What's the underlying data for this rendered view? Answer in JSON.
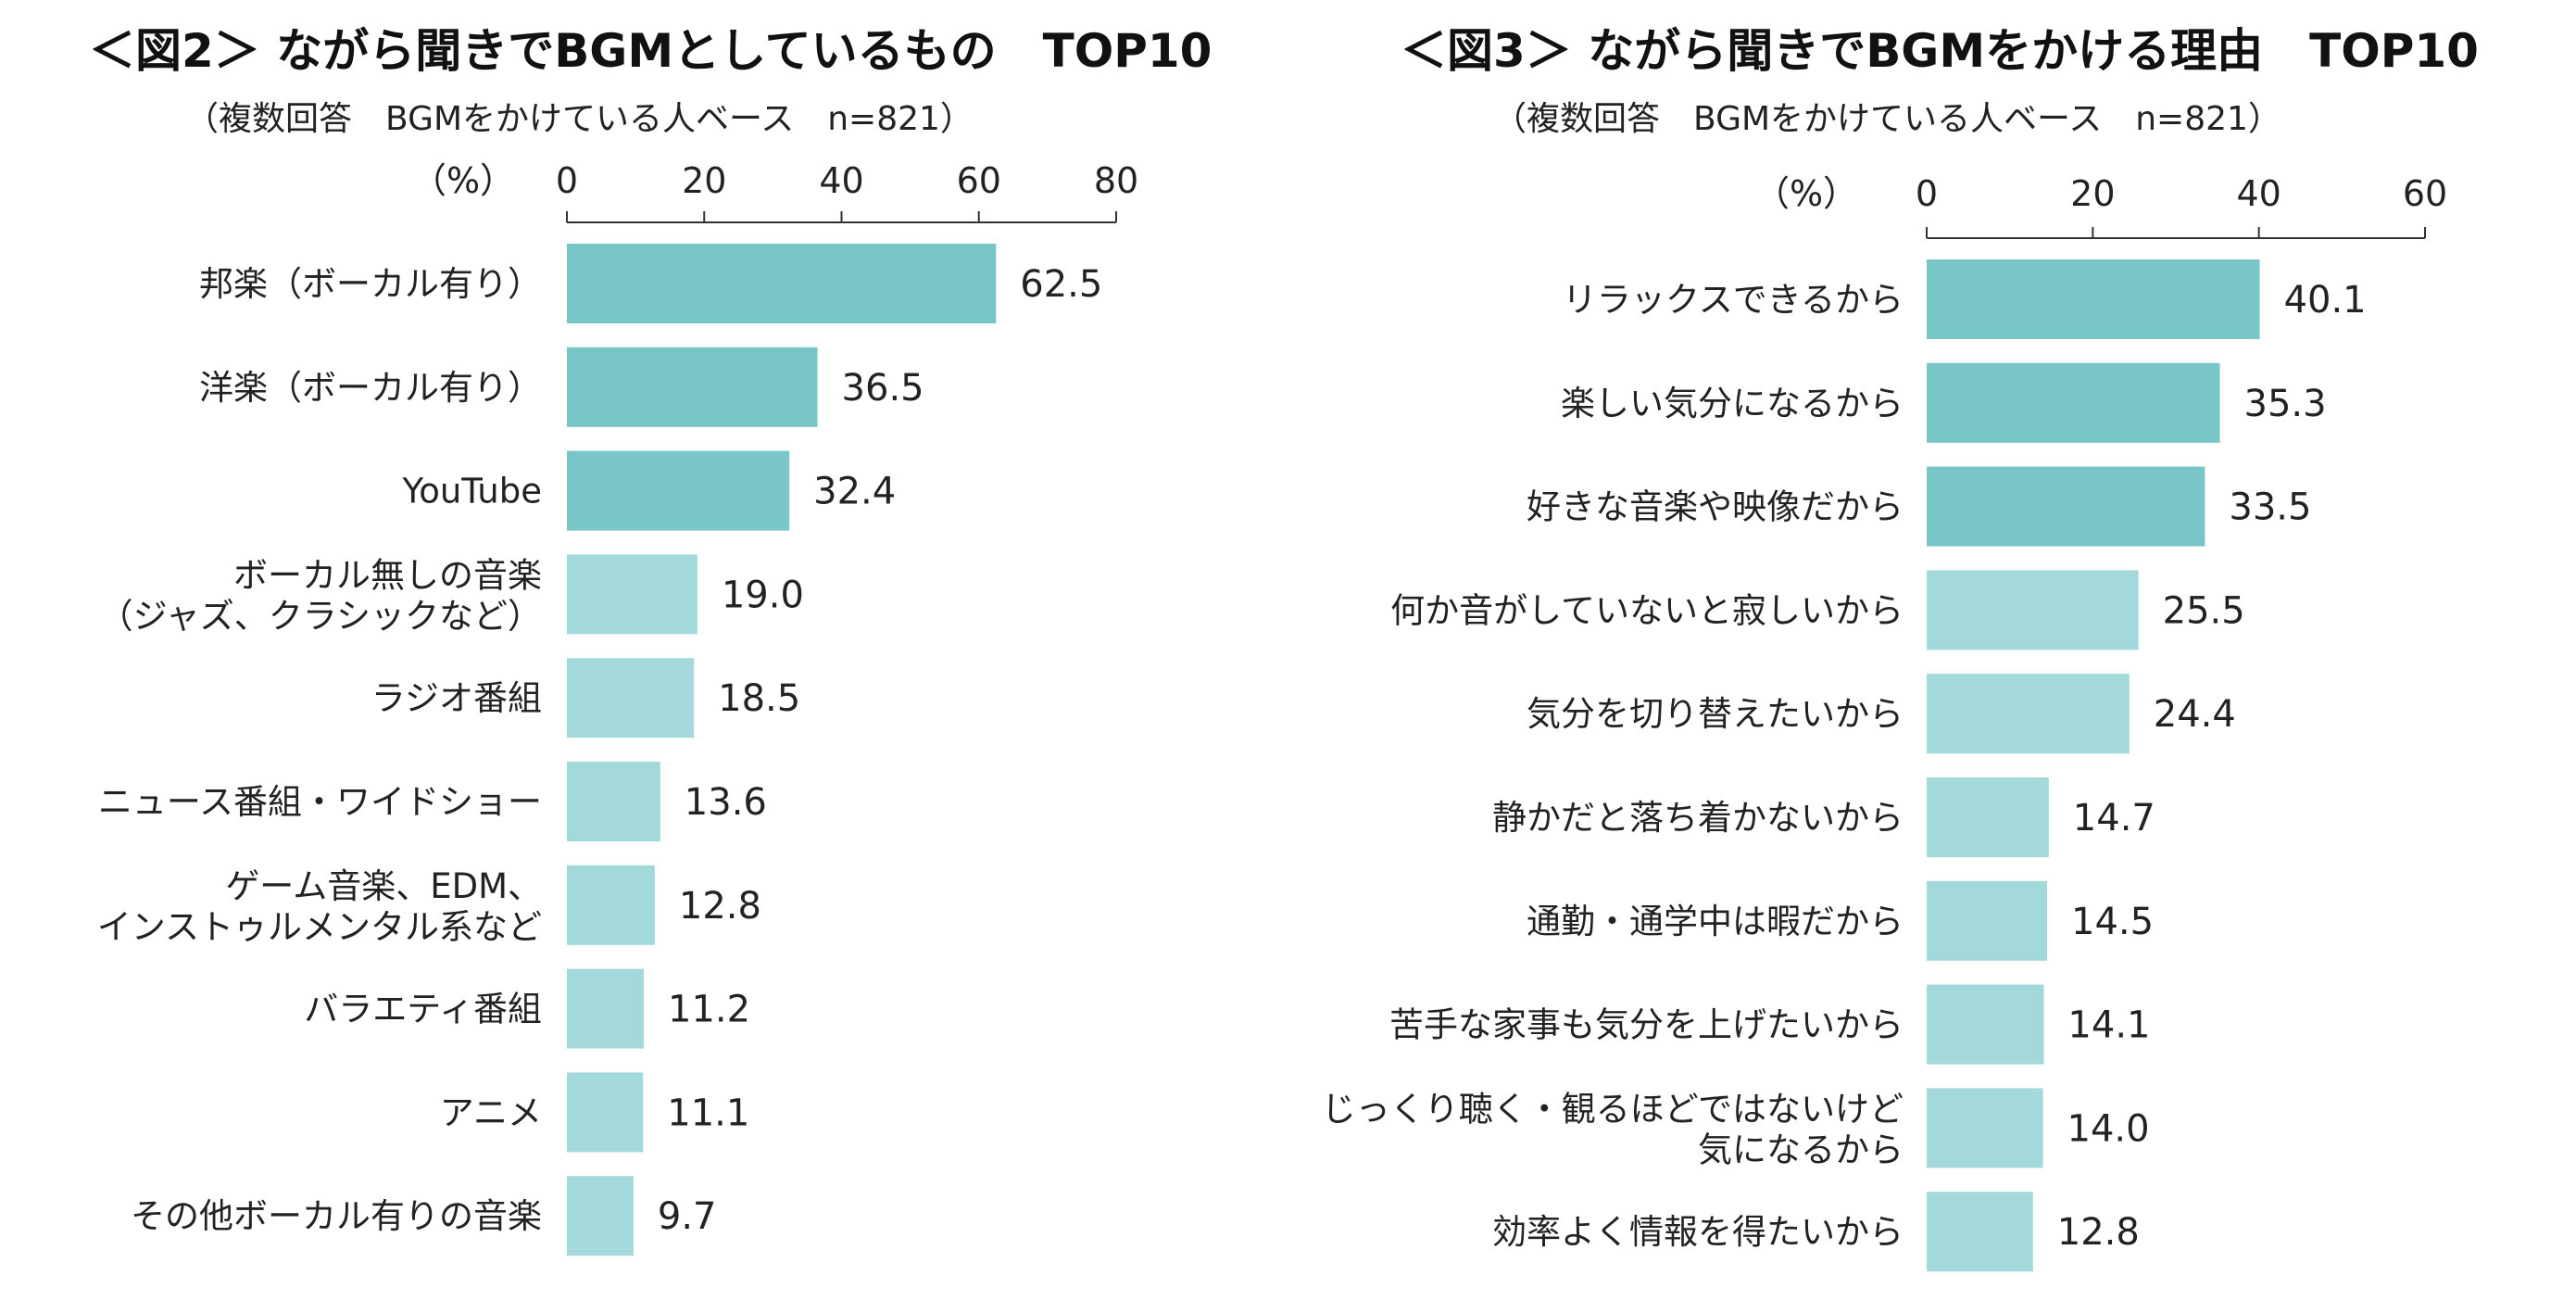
{
  "chart_data": [
    {
      "type": "bar",
      "orientation": "horizontal",
      "title": "＜図2＞ ながら聞きでBGMとしているもの　TOP10",
      "subtitle": "（複数回答　BGMをかけている人ベース　n=821）",
      "unit_label": "（%）",
      "xlim": [
        0,
        80
      ],
      "ticks": [
        "0",
        "20",
        "40",
        "60",
        "80"
      ],
      "categories": [
        [
          "邦楽（ボーカル有り）"
        ],
        [
          "洋楽（ボーカル有り）"
        ],
        [
          "YouTube"
        ],
        [
          "ボーカル無しの音楽",
          "（ジャズ、クラシックなど）"
        ],
        [
          "ラジオ番組"
        ],
        [
          "ニュース番組・ワイドショー"
        ],
        [
          "ゲーム音楽、EDM、",
          "インストゥルメンタル系など"
        ],
        [
          "バラエティ番組"
        ],
        [
          "アニメ"
        ],
        [
          "その他ボーカル有りの音楽"
        ]
      ],
      "values": [
        62.5,
        36.5,
        32.4,
        19.0,
        18.5,
        13.6,
        12.8,
        11.2,
        11.1,
        9.7
      ],
      "value_labels": [
        "62.5",
        "36.5",
        "32.4",
        "19.0",
        "18.5",
        "13.6",
        "12.8",
        "11.2",
        "11.1",
        "9.7"
      ],
      "highlight_count": 3
    },
    {
      "type": "bar",
      "orientation": "horizontal",
      "title": "＜図3＞ ながら聞きでBGMをかける理由　TOP10",
      "subtitle": "（複数回答　BGMをかけている人ベース　n=821）",
      "unit_label": "（%）",
      "xlim": [
        0,
        60
      ],
      "ticks": [
        "0",
        "20",
        "40",
        "60"
      ],
      "categories": [
        [
          "リラックスできるから"
        ],
        [
          "楽しい気分になるから"
        ],
        [
          "好きな音楽や映像だから"
        ],
        [
          "何か音がしていないと寂しいから"
        ],
        [
          "気分を切り替えたいから"
        ],
        [
          "静かだと落ち着かないから"
        ],
        [
          "通勤・通学中は暇だから"
        ],
        [
          "苦手な家事も気分を上げたいから"
        ],
        [
          "じっくり聴く・観るほどではないけど",
          "気になるから"
        ],
        [
          "効率よく情報を得たいから"
        ]
      ],
      "values": [
        40.1,
        35.3,
        33.5,
        25.5,
        24.4,
        14.7,
        14.5,
        14.1,
        14.0,
        12.8
      ],
      "value_labels": [
        "40.1",
        "35.3",
        "33.5",
        "25.5",
        "24.4",
        "14.7",
        "14.5",
        "14.1",
        "14.0",
        "12.8"
      ],
      "highlight_count": 3
    }
  ],
  "colors": {
    "bar_top": "#78c6c8",
    "bar_rest": "#a3d9da",
    "axis": "#333333",
    "text": "#222222"
  }
}
